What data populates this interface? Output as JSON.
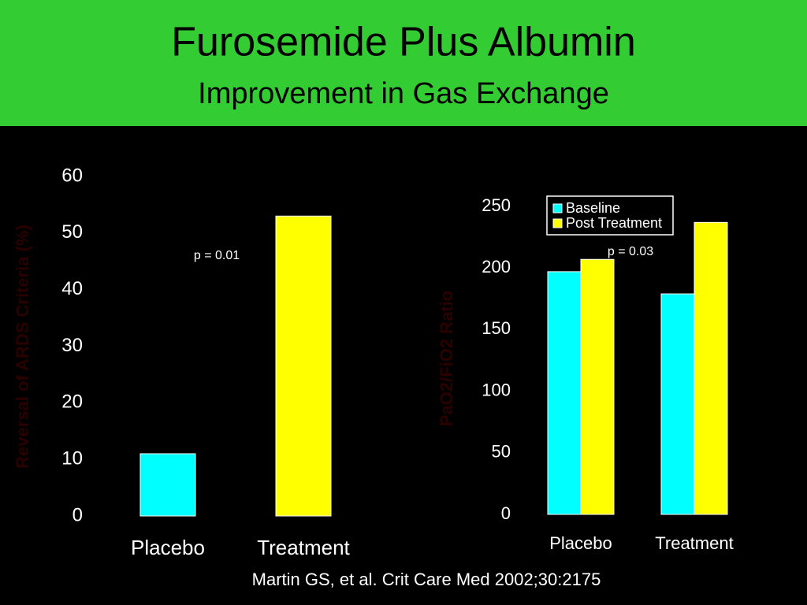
{
  "title": "Furosemide Plus Albumin",
  "subtitle": "Improvement in Gas Exchange",
  "citation": "Martin GS, et al. Crit Care Med 2002;30:2175",
  "chart_data": [
    {
      "type": "bar",
      "y_label": "Reversal of ARDS Criteria (%)",
      "categories": [
        "Placebo",
        "Treatment"
      ],
      "values": [
        11,
        53
      ],
      "colors": [
        "#00ffff",
        "#ffff00"
      ],
      "ylim": [
        0,
        60
      ],
      "yticks": [
        0,
        10,
        20,
        30,
        40,
        50,
        60
      ],
      "annotation": "p = 0.01",
      "grid": false
    },
    {
      "type": "bar",
      "y_label": "PaO2/FiO2 Ratio",
      "categories": [
        "Placebo",
        "Treatment"
      ],
      "series": [
        {
          "name": "Baseline",
          "color": "#00ffff",
          "values": [
            197,
            179
          ]
        },
        {
          "name": "Post Treatment",
          "color": "#ffff00",
          "values": [
            207,
            237
          ]
        }
      ],
      "ylim": [
        0,
        250
      ],
      "yticks": [
        0,
        50,
        100,
        150,
        200,
        250
      ],
      "annotation": "p = 0.03",
      "legend": "upper left",
      "grid": false
    }
  ]
}
